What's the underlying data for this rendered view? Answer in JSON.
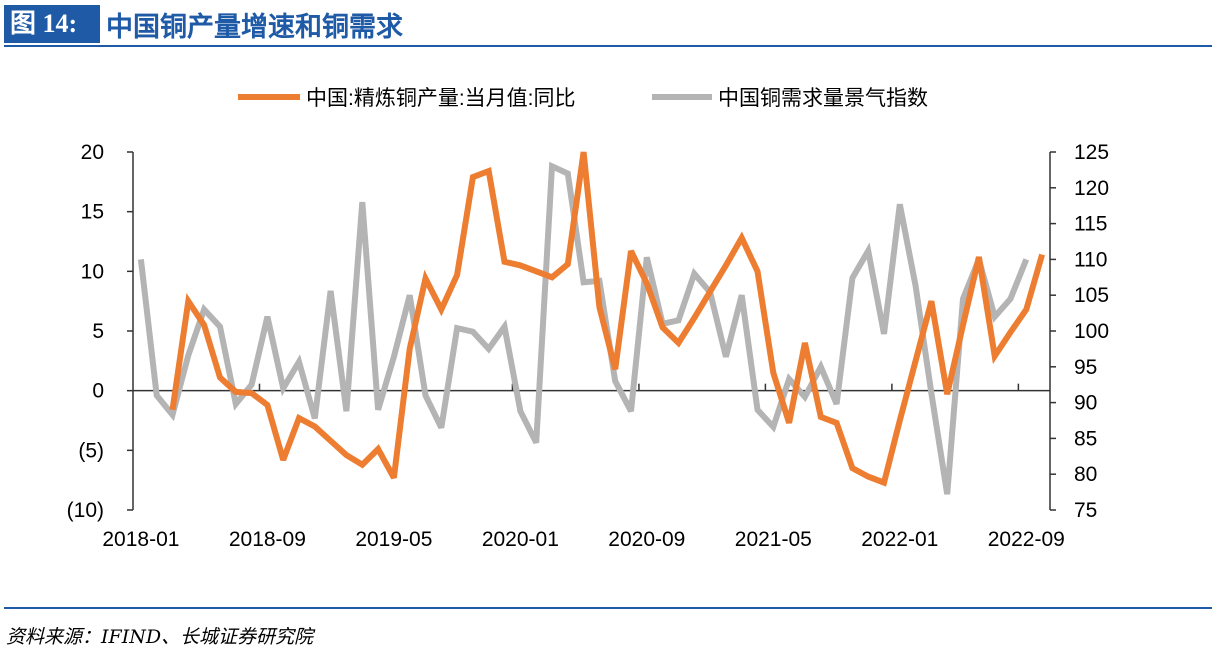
{
  "header": {
    "figure_label": "图 14:",
    "title": "中国铜产量增速和铜需求"
  },
  "source": "资料来源：IFIND、长城证券研究院",
  "colors": {
    "brand": "#1f5aa6",
    "series_orange": "#ed7d31",
    "series_grey": "#b4b4b4",
    "negative_label": "#ff0000"
  },
  "chart_data": {
    "type": "line",
    "title": "中国铜产量增速和铜需求",
    "x_start": "2018-01",
    "x_end": "2022-10",
    "x_tick_labels": [
      "2018-01",
      "2018-09",
      "2019-05",
      "2020-01",
      "2020-09",
      "2021-05",
      "2022-01",
      "2022-09"
    ],
    "y_left": {
      "range": [
        -10,
        20
      ],
      "ticks": [
        20,
        15,
        10,
        5,
        0,
        -5,
        -10
      ],
      "tick_labels": [
        "20",
        "15",
        "10",
        "5",
        "0",
        "(5)",
        "(10)"
      ]
    },
    "y_right": {
      "range": [
        75,
        125
      ],
      "ticks": [
        125,
        120,
        115,
        110,
        105,
        100,
        95,
        90,
        85,
        80,
        75
      ],
      "tick_labels": [
        "125",
        "120",
        "115",
        "110",
        "105",
        "100",
        "95",
        "90",
        "85",
        "80",
        "75"
      ]
    },
    "legend": {
      "placement": "top-center"
    },
    "series": [
      {
        "name": "中国:精炼铜产量:当月值:同比",
        "axis": "left",
        "color": "#ed7d31",
        "start_index": 2,
        "values": [
          -1.6,
          7.5,
          5.5,
          1.1,
          -0.1,
          -0.2,
          -1.2,
          -5.8,
          -2.3,
          -3.0,
          -4.2,
          -5.4,
          -6.2,
          -4.9,
          -7.3,
          3.5,
          9.4,
          6.8,
          9.7,
          17.9,
          18.4,
          10.8,
          10.5,
          10.0,
          9.5,
          10.6,
          20.0,
          7.0,
          1.8,
          11.7,
          9.0,
          5.3,
          4.0,
          6.1,
          8.3,
          10.5,
          12.8,
          10.0,
          1.5,
          -2.7,
          4.0,
          -2.2,
          -2.7,
          -6.5,
          -7.2,
          -7.7,
          -2.5,
          2.5,
          7.5,
          -0.3,
          5.5,
          11.2,
          2.9,
          4.9,
          6.8,
          11.4
        ]
      },
      {
        "name": "中国铜需求量景气指数",
        "axis": "right",
        "color": "#b4b4b4",
        "start_index": 0,
        "values": [
          110,
          91,
          88.3,
          96.6,
          103,
          100.6,
          89.8,
          92.5,
          102,
          92,
          95.7,
          87.8,
          105.6,
          88.8,
          118,
          89,
          96.4,
          105,
          91,
          86.5,
          100.4,
          99.9,
          97.5,
          100.6,
          88.8,
          84.4,
          123,
          122,
          106.8,
          107,
          93,
          88.8,
          110.3,
          101,
          101.5,
          108,
          105.4,
          96.4,
          105,
          89,
          86.6,
          93.3,
          90.8,
          95,
          89.8,
          107.4,
          111.2,
          99.6,
          117.7,
          106.3,
          91.3,
          77.2,
          104.5,
          110,
          102,
          104.5,
          110
        ]
      }
    ]
  }
}
